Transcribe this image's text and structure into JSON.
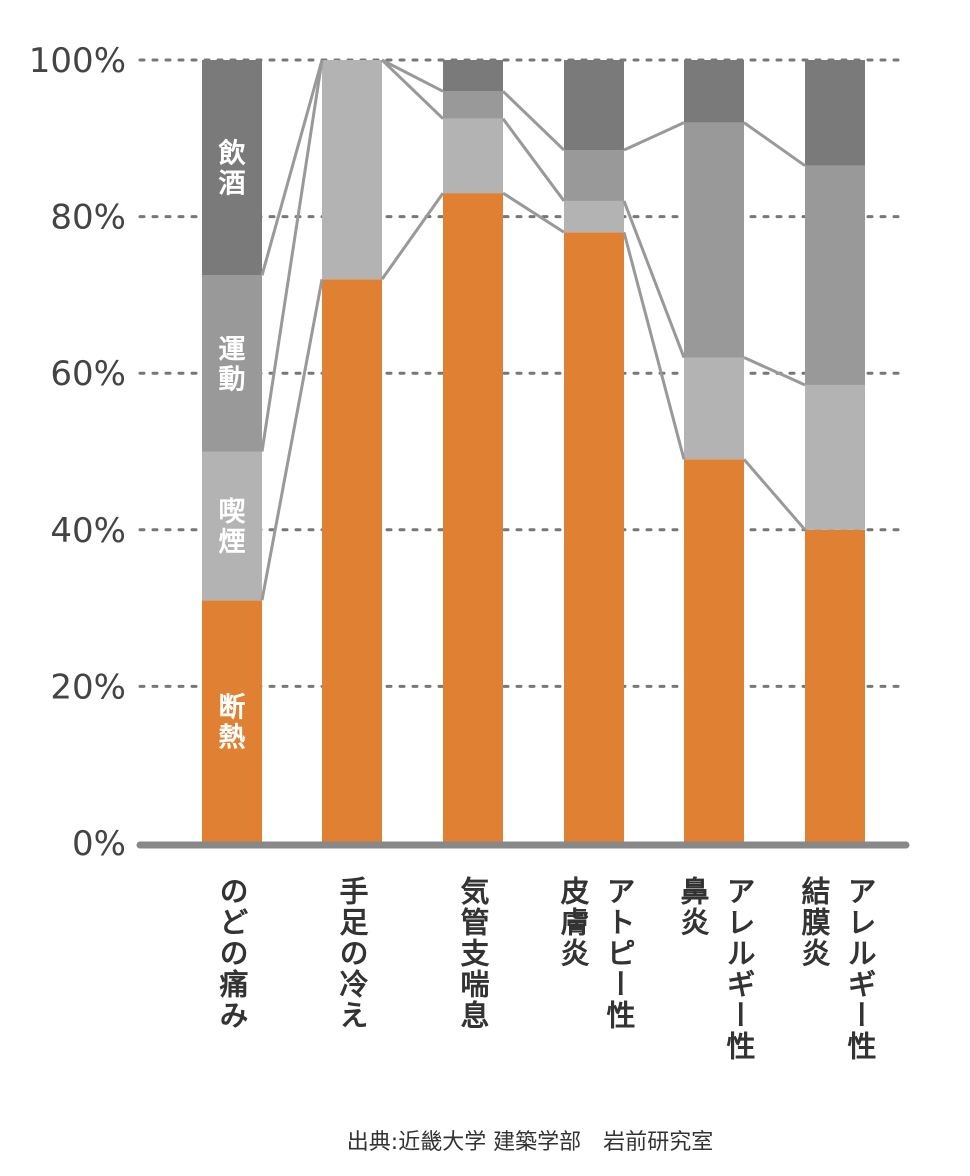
{
  "chart_data": {
    "type": "bar",
    "stacked": true,
    "categories": [
      [
        "のどの痛み"
      ],
      [
        "手足の冷え"
      ],
      [
        "気管支喘息"
      ],
      [
        "アトピー性",
        "皮膚炎"
      ],
      [
        "アレルギー性",
        "鼻炎"
      ],
      [
        "アレルギー性",
        "結膜炎"
      ]
    ],
    "series": [
      {
        "name": "断熱",
        "color": "#E08032",
        "values": [
          31,
          72,
          83,
          78,
          49,
          40
        ]
      },
      {
        "name": "喫煙",
        "color": "#B3B3B3",
        "values": [
          19,
          28,
          9.5,
          4,
          13,
          18.5
        ]
      },
      {
        "name": "運動",
        "color": "#999999",
        "values": [
          22.5,
          0,
          3.5,
          6.5,
          30,
          28
        ]
      },
      {
        "name": "飲酒",
        "color": "#7A7A7A",
        "values": [
          27.5,
          0,
          4,
          11.5,
          8,
          13.5
        ]
      }
    ],
    "yticks": [
      "0%",
      "20%",
      "40%",
      "60%",
      "80%",
      "100%"
    ],
    "ylim": [
      0,
      100
    ],
    "grid": true,
    "connector_lines": true,
    "source": "出典:近畿大学 建築学部　岩前研究室"
  }
}
